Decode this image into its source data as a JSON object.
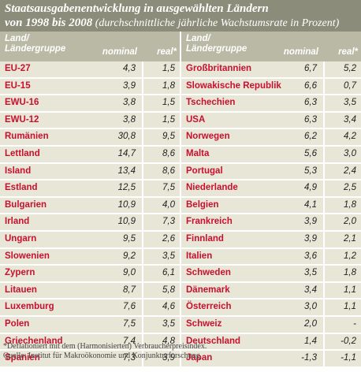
{
  "header": {
    "title_line1": "Staatsausgabenentwicklung in ausgewählten Ländern",
    "title_line2_bold": "von 1998 bis 2008",
    "title_line2_sub": " (durchschnittliche jährliche Wachstumsrate in Prozent)"
  },
  "columns": {
    "name_line1": "Land/",
    "name_line2": "Ländergruppe",
    "nominal": "nominal",
    "real": "real*"
  },
  "left_rows": [
    {
      "name": "EU-27",
      "nominal": "4,3",
      "real": "1,5"
    },
    {
      "name": "EU-15",
      "nominal": "3,9",
      "real": "1,8"
    },
    {
      "name": "EWU-16",
      "nominal": "3,8",
      "real": "1,5"
    },
    {
      "name": "EWU-12",
      "nominal": "3,8",
      "real": "1,5"
    },
    {
      "name": "Rumänien",
      "nominal": "30,8",
      "real": "9,5"
    },
    {
      "name": "Lettland",
      "nominal": "14,7",
      "real": "8,6"
    },
    {
      "name": "Island",
      "nominal": "13,4",
      "real": "8,6"
    },
    {
      "name": "Estland",
      "nominal": "12,5",
      "real": "7,5"
    },
    {
      "name": "Bulgarien",
      "nominal": "10,9",
      "real": "4,0"
    },
    {
      "name": "Irland",
      "nominal": "10,9",
      "real": "7,3"
    },
    {
      "name": "Ungarn",
      "nominal": "9,5",
      "real": "2,6"
    },
    {
      "name": "Slowenien",
      "nominal": "9,2",
      "real": "3,5"
    },
    {
      "name": "Zypern",
      "nominal": "9,0",
      "real": "6,1"
    },
    {
      "name": "Litauen",
      "nominal": "8,7",
      "real": "5,8"
    },
    {
      "name": "Luxemburg",
      "nominal": "7,6",
      "real": "4,6"
    },
    {
      "name": "Polen",
      "nominal": "7,5",
      "real": "3,5"
    },
    {
      "name": "Griechenland",
      "nominal": "7,4",
      "real": "4,8"
    },
    {
      "name": "Spanien",
      "nominal": "7,3",
      "real": "3,9"
    }
  ],
  "right_rows": [
    {
      "name": "Großbritannien",
      "nominal": "6,7",
      "real": "5,2"
    },
    {
      "name": "Slowakische Republik",
      "nominal": "6,6",
      "real": "0,7"
    },
    {
      "name": "Tschechien",
      "nominal": "6,3",
      "real": "3,5"
    },
    {
      "name": "USA",
      "nominal": "6,3",
      "real": "3,4"
    },
    {
      "name": "Norwegen",
      "nominal": "6,2",
      "real": "4,2"
    },
    {
      "name": "Malta",
      "nominal": "5,6",
      "real": "3,0"
    },
    {
      "name": "Portugal",
      "nominal": "5,3",
      "real": "2,4"
    },
    {
      "name": "Niederlande",
      "nominal": "4,9",
      "real": "2,5"
    },
    {
      "name": "Belgien",
      "nominal": "4,1",
      "real": "1,8"
    },
    {
      "name": "Frankreich",
      "nominal": "3,9",
      "real": "2,0"
    },
    {
      "name": "Finnland",
      "nominal": "3,9",
      "real": "2,1"
    },
    {
      "name": "Italien",
      "nominal": "3,6",
      "real": "1,2"
    },
    {
      "name": "Schweden",
      "nominal": "3,5",
      "real": "1,8"
    },
    {
      "name": "Dänemark",
      "nominal": "3,4",
      "real": "1,1"
    },
    {
      "name": "Österreich",
      "nominal": "3,0",
      "real": "1,1"
    },
    {
      "name": "Schweiz",
      "nominal": "2,0",
      "real": "-"
    },
    {
      "name": "Deutschland",
      "nominal": "1,4",
      "real": "-0,2"
    },
    {
      "name": "Japan",
      "nominal": "-1,3",
      "real": "-1,1"
    }
  ],
  "footer": {
    "note": "*Deflationiert mit dem (Harmonisierten) Verbraucherpreisindex.",
    "source": "Quelle: Institut für Makroökonomie und Konjunkturforschung"
  }
}
